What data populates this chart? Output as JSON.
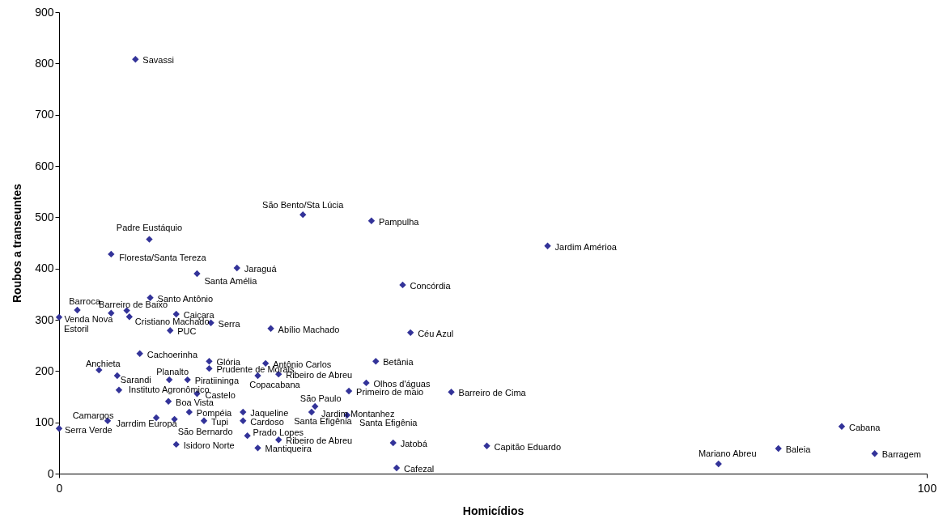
{
  "chart_data": {
    "type": "scatter",
    "xlabel": "Homicídios",
    "ylabel": "Roubos a transeuntes",
    "xlim": [
      0,
      100
    ],
    "xticks": [
      0,
      100
    ],
    "ylim": [
      0,
      900
    ],
    "yticks": [
      0,
      100,
      200,
      300,
      400,
      500,
      600,
      700,
      800,
      900
    ],
    "grid": false,
    "marker": "diamond",
    "series": [
      {
        "color": "#333399",
        "x": [
          8.8,
          28.1,
          36.0,
          10.4,
          56.3,
          6.0,
          20.5,
          15.9,
          39.6,
          10.5,
          2.1,
          7.8,
          6.0,
          13.5,
          8.1,
          0,
          17.5,
          12.8,
          24.4,
          40.5,
          9.3,
          17.3,
          23.8,
          36.5,
          4.6,
          17.3,
          6.7,
          22.9,
          25.3,
          12.7,
          14.8,
          35.4,
          6.9,
          33.4,
          45.2,
          15.9,
          12.6,
          29.5,
          29.1,
          33.2,
          15.0,
          21.2,
          5.6,
          11.2,
          13.3,
          16.7,
          21.2,
          0,
          21.7,
          25.3,
          13.5,
          22.9,
          38.5,
          49.3,
          38.9,
          76.0,
          82.9,
          90.2,
          94.0
        ],
        "values": [
          808,
          505,
          493,
          457,
          444,
          428,
          401,
          390,
          368,
          343,
          319,
          318,
          313,
          311,
          306,
          305,
          294,
          279,
          283,
          275,
          234,
          219,
          215,
          219,
          202,
          205,
          191,
          191,
          194,
          183,
          183,
          177,
          163,
          161,
          159,
          156,
          141,
          131,
          120,
          114,
          120,
          120,
          103,
          109,
          106,
          103,
          103,
          88,
          74,
          66,
          57,
          50,
          60,
          54,
          11,
          19,
          49,
          92,
          39
        ]
      }
    ],
    "annotations": [
      {
        "text": "Savassi",
        "x": 8.8,
        "y": 808
      },
      {
        "text": "São Bento/Sta Lúcia",
        "x": 28.1,
        "y": 505
      },
      {
        "text": "Pampulha",
        "x": 36.0,
        "y": 493
      },
      {
        "text": "Padre Eustáquio",
        "x": 10.4,
        "y": 457
      },
      {
        "text": "Jardim Amérioa",
        "x": 56.3,
        "y": 444
      },
      {
        "text": "Floresta/Santa Tereza",
        "x": 6.0,
        "y": 428
      },
      {
        "text": "Jaraguá",
        "x": 20.5,
        "y": 401
      },
      {
        "text": "Santa Amélia",
        "x": 15.9,
        "y": 390
      },
      {
        "text": "Concórdia",
        "x": 39.6,
        "y": 368
      },
      {
        "text": "Santo Antônio",
        "x": 10.5,
        "y": 343
      },
      {
        "text": "Barroca",
        "x": 2.1,
        "y": 319
      },
      {
        "text": "Barreiro de Baixo",
        "x": 7.8,
        "y": 318
      },
      {
        "text": "Venda Nova",
        "x": 6.0,
        "y": 313
      },
      {
        "text": "Caiçara",
        "x": 13.5,
        "y": 311
      },
      {
        "text": "Cristiano Machado",
        "x": 8.1,
        "y": 306
      },
      {
        "text": "Estoril",
        "x": 0,
        "y": 305
      },
      {
        "text": "Serra",
        "x": 17.5,
        "y": 294
      },
      {
        "text": "PUC",
        "x": 12.8,
        "y": 279
      },
      {
        "text": "Abílio Machado",
        "x": 24.4,
        "y": 283
      },
      {
        "text": "Céu Azul",
        "x": 40.5,
        "y": 275
      },
      {
        "text": "Cachoerinha",
        "x": 9.3,
        "y": 234
      },
      {
        "text": "Glória",
        "x": 17.3,
        "y": 219
      },
      {
        "text": "Antônio Carlos",
        "x": 23.8,
        "y": 215
      },
      {
        "text": "Betânia",
        "x": 36.5,
        "y": 219
      },
      {
        "text": "Anchieta",
        "x": 4.6,
        "y": 202
      },
      {
        "text": "Prudente de Morais",
        "x": 17.3,
        "y": 205
      },
      {
        "text": "Sarandi",
        "x": 6.7,
        "y": 191
      },
      {
        "text": "Copacabana",
        "x": 22.9,
        "y": 191
      },
      {
        "text": "Ribeiro de Abreu",
        "x": 25.3,
        "y": 194
      },
      {
        "text": "Planalto",
        "x": 12.7,
        "y": 183
      },
      {
        "text": "Piratiininga",
        "x": 14.8,
        "y": 183
      },
      {
        "text": "Olhos d'águas",
        "x": 35.4,
        "y": 177
      },
      {
        "text": "Instituto Agronômico",
        "x": 6.9,
        "y": 163
      },
      {
        "text": "Primeiro de maio",
        "x": 33.4,
        "y": 161
      },
      {
        "text": "Barreiro de Cima",
        "x": 45.2,
        "y": 159
      },
      {
        "text": "Castelo",
        "x": 15.9,
        "y": 156
      },
      {
        "text": "Boa Vista",
        "x": 12.6,
        "y": 141
      },
      {
        "text": "São Paulo",
        "x": 29.5,
        "y": 131
      },
      {
        "text": "Jardim Montanhez",
        "x": 29.1,
        "y": 120
      },
      {
        "text": "Santa Efigênia",
        "x": 29.1,
        "y": 120
      },
      {
        "text": "Santa Efigênia",
        "x": 33.2,
        "y": 114
      },
      {
        "text": "Pompéia",
        "x": 15.0,
        "y": 120
      },
      {
        "text": "Jaqueline",
        "x": 21.2,
        "y": 120
      },
      {
        "text": "Camargos",
        "x": 5.6,
        "y": 103
      },
      {
        "text": "Jarrdim Europa",
        "x": 11.2,
        "y": 109
      },
      {
        "text": "São Bernardo",
        "x": 13.3,
        "y": 106
      },
      {
        "text": "Tupi",
        "x": 16.7,
        "y": 103
      },
      {
        "text": "Cardoso",
        "x": 21.2,
        "y": 103
      },
      {
        "text": "Serra Verde",
        "x": 0,
        "y": 88
      },
      {
        "text": "Prado Lopes",
        "x": 21.7,
        "y": 74
      },
      {
        "text": "Ribeiro de Abreu",
        "x": 25.3,
        "y": 66
      },
      {
        "text": "Isidoro Norte",
        "x": 13.5,
        "y": 57
      },
      {
        "text": "Mantiqueira",
        "x": 22.9,
        "y": 50
      },
      {
        "text": "Jatobá",
        "x": 38.5,
        "y": 60
      },
      {
        "text": "Capitão Eduardo",
        "x": 49.3,
        "y": 54
      },
      {
        "text": "Cafezal",
        "x": 38.9,
        "y": 11
      },
      {
        "text": "Mariano Abreu",
        "x": 76.0,
        "y": 19
      },
      {
        "text": "Baleia",
        "x": 82.9,
        "y": 49
      },
      {
        "text": "Cabana",
        "x": 90.2,
        "y": 92
      },
      {
        "text": "Barragem",
        "x": 94.0,
        "y": 39
      }
    ]
  }
}
